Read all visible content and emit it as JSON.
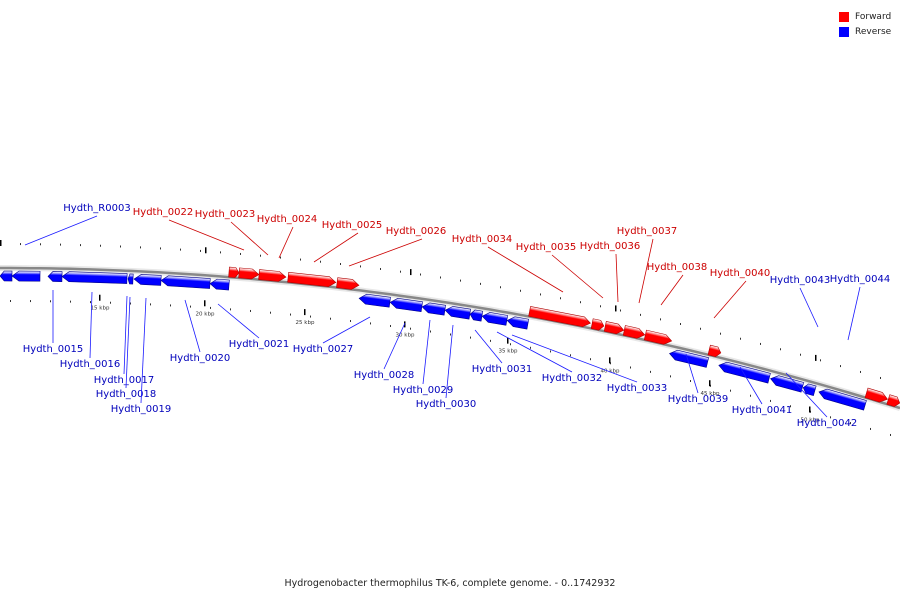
{
  "legend": [
    {
      "label": "Forward",
      "color": "#ff0000"
    },
    {
      "label": "Reverse",
      "color": "#0000ff"
    }
  ],
  "caption": "Hydrogenobacter thermophilus TK-6, complete genome. - 0..1742932",
  "colors": {
    "forward": "#ff0000",
    "reverse": "#0000ff",
    "backbone": "#888888",
    "tick": "#000000"
  },
  "scale_labels": [
    "15 kbp",
    "20 kbp",
    "25 kbp",
    "30 kbp",
    "35 kbp",
    "40 kbp",
    "45 kbp",
    "50 kbp"
  ],
  "forward_features": [
    "Hydth_0022",
    "Hydth_0023",
    "Hydth_0024",
    "Hydth_0025",
    "Hydth_0026",
    "Hydth_0034",
    "Hydth_0035",
    "Hydth_0036",
    "Hydth_0037",
    "Hydth_0038",
    "Hydth_0040"
  ],
  "reverse_features": [
    "Hydth_R0003",
    "Hydth_0015",
    "Hydth_0016",
    "Hydth_0017",
    "Hydth_0018",
    "Hydth_0019",
    "Hydth_0020",
    "Hydth_0021",
    "Hydth_0027",
    "Hydth_0028",
    "Hydth_0029",
    "Hydth_0030",
    "Hydth_0031",
    "Hydth_0032",
    "Hydth_0033",
    "Hydth_0039",
    "Hydth_0041",
    "Hydth_0042",
    "Hydth_0043",
    "Hydth_0044"
  ]
}
